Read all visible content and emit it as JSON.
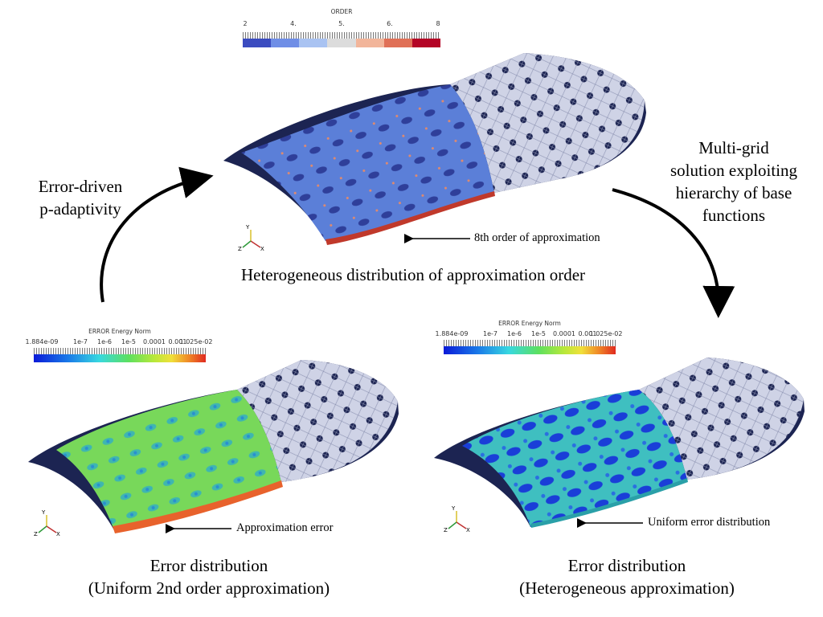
{
  "top_panel": {
    "colorbar": {
      "title": "ORDER",
      "ticks": [
        "2",
        "4.",
        "5.",
        "6.",
        "8"
      ],
      "colors": [
        "#3b4cc0",
        "#6f8ee6",
        "#a9c3f2",
        "#dcdcdc",
        "#f2b59a",
        "#e07057",
        "#b40426"
      ]
    },
    "annotation": "8th order of approximation",
    "caption": "Heterogeneous distribution of approximation order"
  },
  "left_label": {
    "line1": "Error-driven",
    "line2": "p-adaptivity"
  },
  "right_label": {
    "line1": "Multi-grid",
    "line2": "solution exploiting",
    "line3": "hierarchy of base",
    "line4": "functions"
  },
  "bottom_left_panel": {
    "colorbar": {
      "title": "ERROR Energy Norm",
      "ticks": [
        "1.884e-09",
        "1e-7",
        "1e-6",
        "1e-5",
        "0.0001",
        "0.001",
        "1.025e-02"
      ]
    },
    "annotation": "Approximation error",
    "caption_line1": "Error distribution",
    "caption_line2": "(Uniform 2nd order approximation)"
  },
  "bottom_right_panel": {
    "colorbar": {
      "title": "ERROR Energy Norm",
      "ticks": [
        "1.884e-09",
        "1e-7",
        "1e-6",
        "1e-5",
        "0.0001",
        "0.001",
        "1.025e-02"
      ]
    },
    "annotation": "Uniform error distribution",
    "caption_line1": "Error distribution",
    "caption_line2": "(Heterogeneous approximation)"
  },
  "axis_triad": {
    "x": "X",
    "y": "Y",
    "z": "Z"
  },
  "colors": {
    "mesh_dark": "#1c2452",
    "mesh_light": "#cfd3e6",
    "order_blue": "#5b7fd8",
    "error_green": "#66d45a",
    "error_blue": "#3fb6c8",
    "arrow": "#000000"
  }
}
